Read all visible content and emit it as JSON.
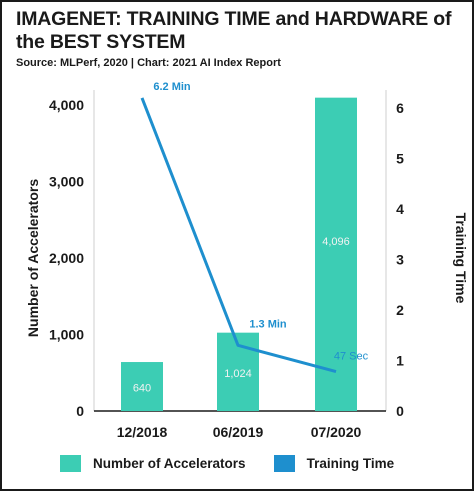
{
  "title": "IMAGENET: TRAINING TIME and HARDWARE of the BEST SYSTEM",
  "source": "Source: MLPerf, 2020 | Chart: 2021 AI Index Report",
  "chart_data": {
    "type": "bar",
    "categories": [
      "12/2018",
      "06/2019",
      "07/2020"
    ],
    "series": [
      {
        "name": "Number of Accelerators",
        "type": "bar",
        "axis": "left",
        "values": [
          640,
          1024,
          4096
        ],
        "labels": [
          "640",
          "1,024",
          "4,096"
        ],
        "color": "#3ccdb4"
      },
      {
        "name": "Training Time",
        "type": "line",
        "axis": "right",
        "values": [
          6.2,
          1.3,
          0.78
        ],
        "labels": [
          "6.2 Min",
          "1.3 Min",
          "47 Sec"
        ],
        "color": "#1e8fce"
      }
    ],
    "ylabel": "Number of Accelerators",
    "ylim": [
      0,
      4000
    ],
    "yticks": [
      0,
      1000,
      2000,
      3000,
      4000
    ],
    "ytick_labels": [
      "0",
      "1,000",
      "2,000",
      "3,000",
      "4,000"
    ],
    "y2label": "Training Time",
    "y2lim": [
      0,
      6
    ],
    "y2ticks": [
      0,
      1,
      2,
      3,
      4,
      5,
      6
    ],
    "y2tick_labels": [
      "0",
      "1",
      "2",
      "3",
      "4",
      "5",
      "6"
    ],
    "grid": false,
    "legend_position": "bottom"
  }
}
